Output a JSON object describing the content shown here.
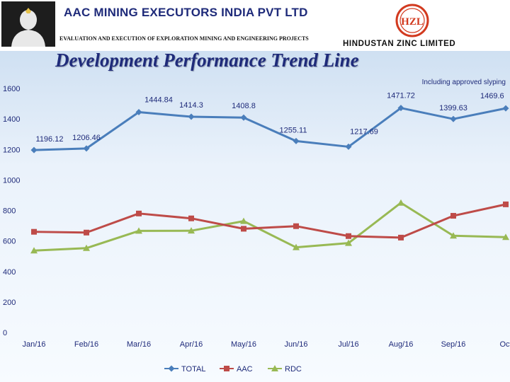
{
  "header": {
    "company_title": "AAC MINING EXECUTORS INDIA PVT LTD",
    "company_subtitle": "EVALUATION AND EXECUTION OF EXPLORATION MINING AND ENGINEERING PROJECTS",
    "partner_name": "HINDUSTAN ZINC LIMITED",
    "partner_logo_text": "HZL",
    "avatar_icon": "person-silhouette-icon"
  },
  "colors": {
    "title": "#1f2b7a",
    "total": "#4a7ebb",
    "aac": "#be4b48",
    "rdc": "#98b954",
    "logo": "#d23a1f"
  },
  "chart_data": {
    "type": "line",
    "title": "Development Performance Trend Line",
    "note": "Including approved slyping",
    "categories": [
      "Jan/16",
      "Feb/16",
      "Mar/16",
      "Apr/16",
      "May/16",
      "Jun/16",
      "Jul/16",
      "Aug/16",
      "Sep/16",
      "Oct"
    ],
    "ylim": [
      0,
      1600
    ],
    "yticks": [
      0,
      200,
      400,
      600,
      800,
      1000,
      1200,
      1400,
      1600
    ],
    "xlabel": "",
    "ylabel": "",
    "grid": false,
    "legend_position": "bottom",
    "series": [
      {
        "name": "TOTAL",
        "marker": "diamond",
        "values": [
          1196.12,
          1206.46,
          1444.84,
          1414.3,
          1408.8,
          1255.11,
          1217.69,
          1471.72,
          1399.63,
          1469.6
        ],
        "labels": [
          "1196.12",
          "1206.46",
          "1444.84",
          "1414.3",
          "1408.8",
          "1255.11",
          "1217.69",
          "1471.72",
          "1399.63",
          "1469.6"
        ]
      },
      {
        "name": "AAC",
        "marker": "square",
        "values": [
          660,
          655,
          780,
          748,
          680,
          697,
          632,
          622,
          765,
          840
        ]
      },
      {
        "name": "RDC",
        "marker": "triangle",
        "values": [
          537,
          553,
          666,
          667,
          730,
          558,
          586,
          850,
          634,
          625
        ]
      }
    ]
  }
}
